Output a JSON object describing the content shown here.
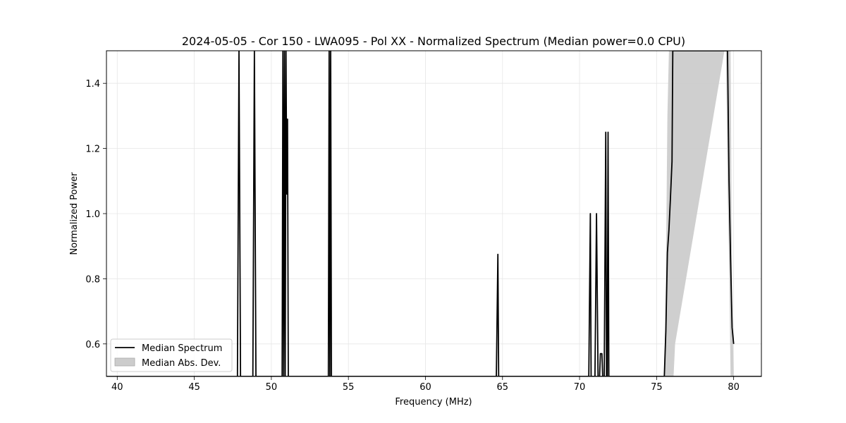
{
  "chart_data": {
    "type": "line",
    "title": "2024-05-05 - Cor 150 - LWA095 - Pol XX - Normalized Spectrum (Median power=0.0 CPU)",
    "xlabel": "Frequency (MHz)",
    "ylabel": "Normalized Power",
    "xlim": [
      39.3,
      81.8
    ],
    "ylim": [
      0.5,
      1.5
    ],
    "xticks": [
      40,
      45,
      50,
      55,
      60,
      65,
      70,
      75,
      80
    ],
    "yticks": [
      0.6,
      0.8,
      1.0,
      1.2,
      1.4
    ],
    "grid": true,
    "legend": "lower-left",
    "series": [
      {
        "name": "Median Spectrum",
        "color": "#000000",
        "x": [
          47.8,
          47.9,
          48.0,
          48.8,
          48.9,
          49.0,
          50.7,
          50.75,
          50.8,
          50.85,
          50.9,
          50.95,
          51.0,
          51.05,
          51.1,
          51.15,
          51.2,
          53.7,
          53.75,
          53.8,
          53.85,
          53.9,
          53.95,
          64.6,
          64.7,
          64.75,
          64.8,
          70.6,
          70.7,
          70.75,
          71.0,
          71.1,
          71.2,
          71.3,
          71.35,
          71.4,
          71.45,
          71.5,
          71.6,
          71.7,
          71.75,
          71.8,
          71.85,
          71.9,
          71.95,
          75.5,
          75.6,
          75.7,
          75.8,
          75.9,
          76.0,
          76.05,
          76.1,
          79.5,
          79.55,
          79.6,
          79.7,
          79.8,
          79.9,
          80.0
        ],
        "y": [
          0.5,
          1.5,
          0.5,
          0.5,
          1.5,
          0.5,
          0.5,
          1.5,
          0.5,
          1.5,
          0.5,
          1.5,
          1.06,
          1.29,
          0.5,
          0.5,
          0.5,
          0.5,
          1.5,
          0.5,
          1.5,
          0.5,
          0.5,
          0.5,
          0.875,
          0.5,
          0.5,
          0.5,
          1.0,
          0.5,
          0.5,
          1.0,
          0.5,
          0.5,
          0.57,
          0.57,
          0.57,
          0.5,
          0.5,
          1.25,
          0.5,
          0.5,
          1.25,
          0.5,
          0.5,
          0.5,
          0.64,
          0.88,
          0.95,
          1.05,
          1.16,
          1.5,
          1.5,
          1.5,
          1.5,
          1.5,
          1.1,
          0.86,
          0.65,
          0.6
        ]
      },
      {
        "name": "Median Abs. Dev.",
        "color": "#cccccc",
        "fill_between": true,
        "x": [
          75.5,
          75.6,
          75.7,
          75.8,
          75.9,
          76.0,
          76.05,
          76.1,
          76.2,
          79.4,
          79.5,
          79.6,
          79.7,
          79.8,
          79.9,
          80.0
        ],
        "lower": [
          0.5,
          0.5,
          0.5,
          0.5,
          0.5,
          0.5,
          0.5,
          0.5,
          0.6,
          1.5,
          1.5,
          1.1,
          0.85,
          0.5,
          0.5,
          0.5
        ],
        "upper": [
          0.5,
          0.8,
          1.3,
          1.5,
          1.5,
          1.5,
          1.5,
          1.5,
          1.5,
          1.5,
          1.5,
          1.5,
          1.5,
          1.5,
          0.75,
          0.5
        ]
      }
    ]
  }
}
